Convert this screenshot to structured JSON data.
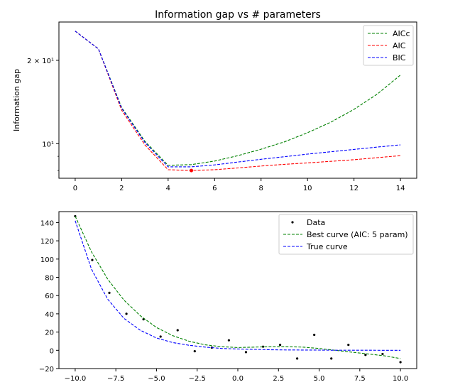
{
  "chart_data": [
    {
      "type": "line",
      "title": "Information gap vs # parameters",
      "xlabel": "",
      "ylabel": "Information gap",
      "xlim": [
        -0.7,
        14.7
      ],
      "ylim": [
        7.5,
        27.5
      ],
      "yscale": "log",
      "grid": false,
      "legend_position": "top-right",
      "x_ticks": [
        0,
        2,
        4,
        6,
        8,
        10,
        12,
        14
      ],
      "y_ticks": [
        {
          "value": 10,
          "label": "10¹"
        },
        {
          "value": 20,
          "label": "2 × 10¹"
        }
      ],
      "x": [
        0,
        1,
        2,
        3,
        4,
        5,
        6,
        7,
        8,
        9,
        10,
        11,
        12,
        13,
        14
      ],
      "series": [
        {
          "name": "AICc",
          "color": "#008000",
          "dashed": true,
          "values": [
            25.5,
            22.0,
            13.5,
            10.2,
            8.35,
            8.4,
            8.65,
            9.05,
            9.55,
            10.15,
            10.95,
            11.95,
            13.3,
            15.1,
            17.7
          ]
        },
        {
          "name": "AIC",
          "color": "#ff0000",
          "dashed": true,
          "values": [
            25.5,
            22.0,
            13.2,
            9.9,
            8.05,
            8.0,
            8.05,
            8.17,
            8.3,
            8.42,
            8.52,
            8.63,
            8.75,
            8.9,
            9.05
          ]
        },
        {
          "name": "BIC",
          "color": "#0000ff",
          "dashed": true,
          "values": [
            25.5,
            22.0,
            13.4,
            10.1,
            8.25,
            8.25,
            8.38,
            8.58,
            8.78,
            8.97,
            9.17,
            9.35,
            9.53,
            9.72,
            9.9
          ]
        }
      ],
      "marker": {
        "x": 5,
        "y": 8.0,
        "color": "#ff0000"
      }
    },
    {
      "type": "scatter",
      "title": "",
      "xlabel": "",
      "ylabel": "",
      "xlim": [
        -11.0,
        11.0
      ],
      "ylim": [
        -20,
        152
      ],
      "grid": false,
      "legend_position": "top-right",
      "x_ticks": [
        -10.0,
        -7.5,
        -5.0,
        -2.5,
        0.0,
        2.5,
        5.0,
        7.5,
        10.0
      ],
      "y_ticks": [
        -20,
        0,
        20,
        40,
        60,
        80,
        100,
        120,
        140
      ],
      "x_tick_labels": [
        "−10.0",
        "−7.5",
        "−5.0",
        "−2.5",
        "0.0",
        "2.5",
        "5.0",
        "7.5",
        "10.0"
      ],
      "y_tick_labels": [
        "−20",
        "0",
        "20",
        "40",
        "60",
        "80",
        "100",
        "120",
        "140"
      ],
      "series": [
        {
          "name": "Data",
          "kind": "points",
          "color": "#000000",
          "x": [
            -10.0,
            -8.95,
            -7.9,
            -6.85,
            -5.8,
            -4.75,
            -3.7,
            -2.65,
            -1.6,
            -0.55,
            0.5,
            1.55,
            2.6,
            3.65,
            4.7,
            5.75,
            6.8,
            7.85,
            8.9,
            10.0
          ],
          "y": [
            147,
            99,
            63,
            40,
            34,
            15,
            22,
            -1,
            3,
            11,
            -2,
            4,
            6,
            -9,
            17,
            -9,
            6,
            -5,
            -4,
            -13
          ]
        },
        {
          "name": "Best curve (AIC: 5 param)",
          "kind": "line",
          "color": "#008000",
          "dashed": true,
          "x": [
            -10,
            -9,
            -8,
            -7,
            -6,
            -5,
            -4,
            -3,
            -2,
            -1,
            0,
            1,
            2,
            3,
            4,
            5,
            6,
            7,
            8,
            9,
            10
          ],
          "y": [
            147,
            108,
            78,
            55,
            38,
            25,
            16,
            10,
            6,
            4,
            3,
            3.5,
            4,
            4,
            3.5,
            2,
            0,
            -2,
            -4,
            -6,
            -9
          ]
        },
        {
          "name": "True curve",
          "kind": "line",
          "color": "#0000ff",
          "dashed": true,
          "x": [
            -10,
            -9,
            -8,
            -7,
            -6,
            -5,
            -4,
            -3,
            -2,
            -1,
            0,
            1,
            2,
            3,
            4,
            5,
            6,
            7,
            8,
            9,
            10
          ],
          "y": [
            142,
            89,
            56,
            35,
            22,
            13.5,
            8.5,
            5.5,
            3.5,
            2,
            1.5,
            1,
            0.6,
            0.4,
            0.3,
            0.2,
            0.1,
            0.1,
            0.1,
            0,
            0
          ]
        }
      ]
    }
  ]
}
